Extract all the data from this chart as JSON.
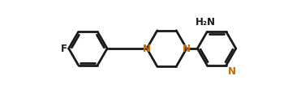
{
  "background_color": "#ffffff",
  "line_color": "#1a1a1a",
  "N_color": "#cc6600",
  "line_width": 2.0,
  "figsize": [
    3.71,
    1.2
  ],
  "dpi": 100,
  "xlim": [
    -1.0,
    0.85
  ],
  "ylim": [
    0.1,
    0.9
  ]
}
